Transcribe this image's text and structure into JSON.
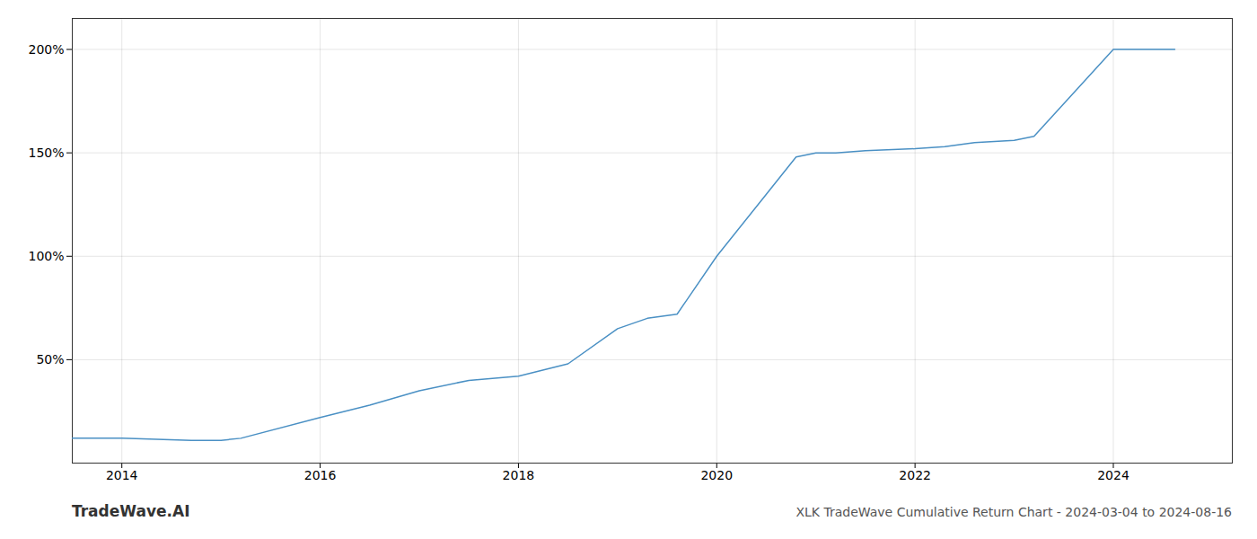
{
  "chart_data": {
    "type": "line",
    "title": "XLK TradeWave Cumulative Return Chart - 2024-03-04 to 2024-08-16",
    "annotations": [
      "TradeWave.AI"
    ],
    "x": [
      2013.5,
      2014.0,
      2014.7,
      2015.0,
      2015.2,
      2016.0,
      2016.5,
      2017.0,
      2017.5,
      2018.0,
      2018.5,
      2019.0,
      2019.3,
      2019.6,
      2020.0,
      2020.5,
      2020.8,
      2021.0,
      2021.2,
      2021.5,
      2022.0,
      2022.3,
      2022.6,
      2023.0,
      2023.2,
      2024.0,
      2024.62
    ],
    "values": [
      12,
      12,
      11,
      11,
      12,
      22,
      28,
      35,
      40,
      42,
      48,
      65,
      70,
      72,
      100,
      130,
      148,
      150,
      150,
      151,
      152,
      153,
      155,
      156,
      158,
      200,
      200
    ],
    "color": "#4a90c4",
    "xlim": [
      2013.5,
      2025.2
    ],
    "xticks": [
      2014,
      2016,
      2018,
      2020,
      2022,
      2024
    ],
    "ylim": [
      0,
      215
    ],
    "yticks": [
      {
        "value": 50,
        "label": "50%"
      },
      {
        "value": 100,
        "label": "100%"
      },
      {
        "value": 150,
        "label": "150%"
      },
      {
        "value": 200,
        "label": "200%"
      }
    ],
    "grid": true
  }
}
